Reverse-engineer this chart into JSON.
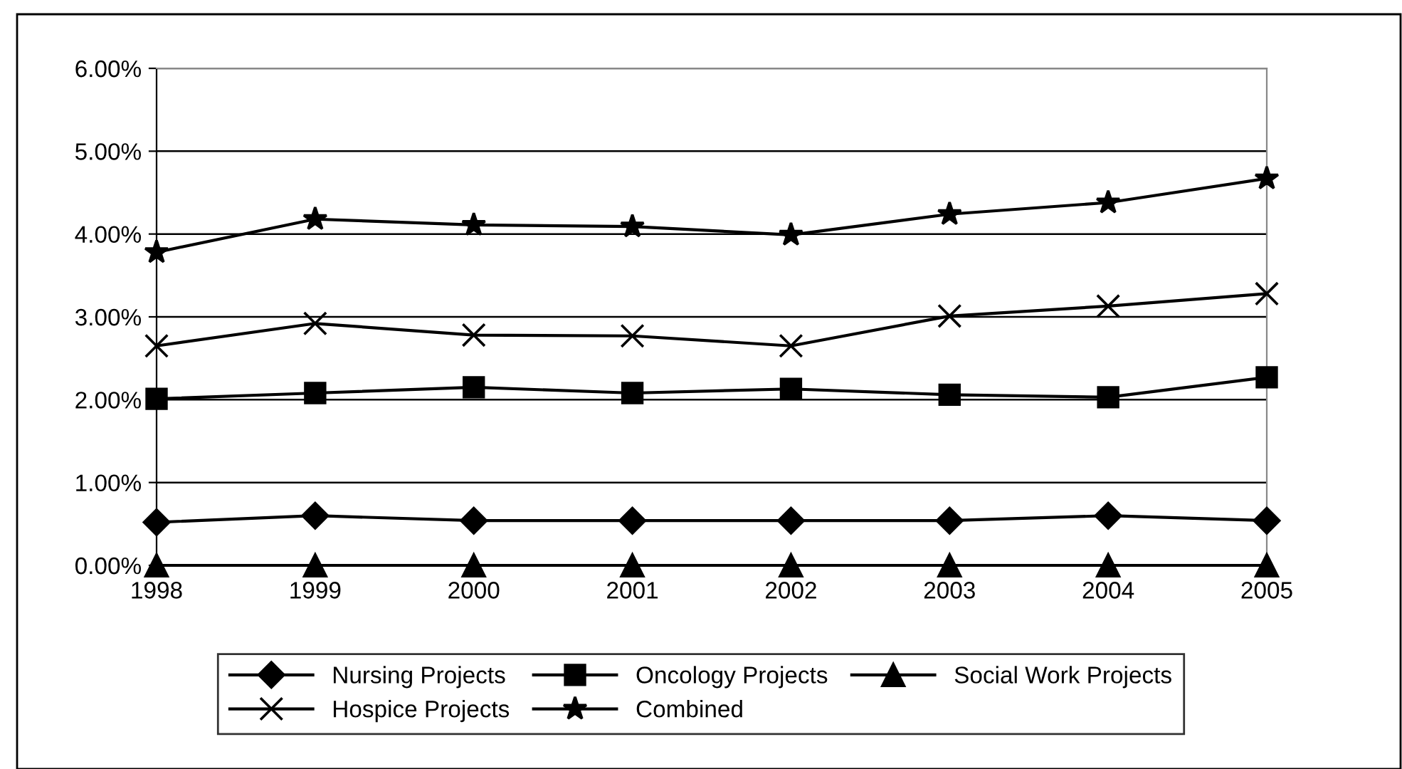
{
  "chart_data": {
    "type": "line",
    "categories": [
      "1998",
      "1999",
      "2000",
      "2001",
      "2002",
      "2003",
      "2004",
      "2005"
    ],
    "ylim": [
      0,
      6
    ],
    "yticks": [
      {
        "value": 0,
        "label": "0.00%"
      },
      {
        "value": 1,
        "label": "1.00%"
      },
      {
        "value": 2,
        "label": "2.00%"
      },
      {
        "value": 3,
        "label": "3.00%"
      },
      {
        "value": 4,
        "label": "4.00%"
      },
      {
        "value": 5,
        "label": "5.00%"
      },
      {
        "value": 6,
        "label": "6.00%"
      }
    ],
    "grid": "y",
    "legend": "bottom",
    "line_style": "solid",
    "series": [
      {
        "name": "Nursing Projects",
        "color": "#000000",
        "marker": "diamond",
        "values": [
          0.52,
          0.6,
          0.54,
          0.54,
          0.54,
          0.54,
          0.6,
          0.54
        ]
      },
      {
        "name": "Oncology Projects",
        "color": "#000000",
        "marker": "square",
        "values": [
          2.01,
          2.08,
          2.15,
          2.08,
          2.13,
          2.06,
          2.03,
          2.27
        ]
      },
      {
        "name": "Social Work Projects",
        "color": "#000000",
        "marker": "triangle",
        "values": [
          0,
          0,
          0,
          0,
          0,
          0,
          0,
          0
        ]
      },
      {
        "name": "Hospice Projects",
        "color": "#000000",
        "marker": "cross",
        "values": [
          2.65,
          2.92,
          2.78,
          2.77,
          2.65,
          3.01,
          3.13,
          3.28
        ]
      },
      {
        "name": "Combined",
        "color": "#000000",
        "marker": "star",
        "values": [
          3.78,
          4.18,
          4.11,
          4.09,
          3.99,
          4.24,
          4.38,
          4.67
        ]
      }
    ]
  }
}
